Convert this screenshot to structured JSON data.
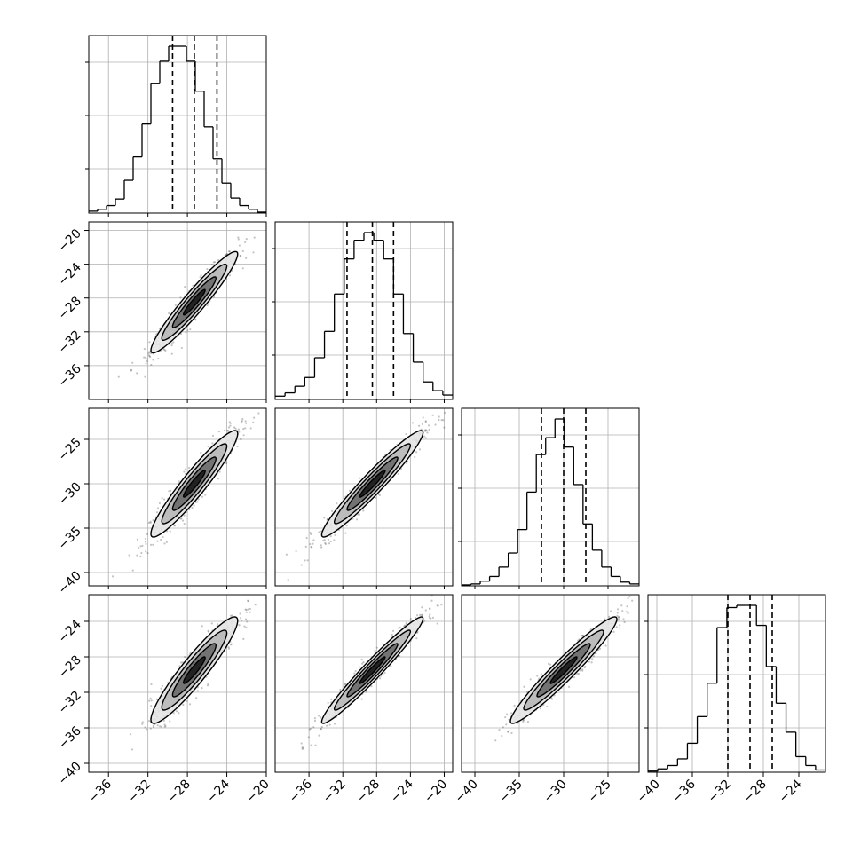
{
  "chart_data": {
    "type": "corner",
    "title": "",
    "parameters": [
      "",
      "",
      "",
      ""
    ],
    "axes": [
      {
        "range": [
          -38,
          -20
        ],
        "ticks": [
          -36,
          -32,
          -28,
          -24,
          -20
        ],
        "tick_labels": [
          "−36",
          "−32",
          "−28",
          "−24",
          "−20"
        ]
      },
      {
        "range": [
          -40,
          -19
        ],
        "ticks": [
          -36,
          -32,
          -28,
          -24,
          -20
        ],
        "tick_labels": [
          "−36",
          "−32",
          "−28",
          "−24",
          "−20"
        ]
      },
      {
        "range": [
          -41.5,
          -21.5
        ],
        "ticks": [
          -40,
          -35,
          -30,
          -25
        ],
        "tick_labels": [
          "−40",
          "−35",
          "−30",
          "−25"
        ]
      },
      {
        "range": [
          -41,
          -21
        ],
        "ticks": [
          -40,
          -36,
          -32,
          -28,
          -24
        ],
        "tick_labels": [
          "−40",
          "−36",
          "−32",
          "−28",
          "−24"
        ]
      }
    ],
    "y_ticks_diag": [
      0.25,
      0.55,
      0.85
    ],
    "histograms": [
      {
        "counts": [
          2,
          4,
          8,
          15,
          35,
          60,
          95,
          138,
          162,
          178,
          178,
          162,
          130,
          92,
          58,
          32,
          16,
          8,
          4,
          1
        ],
        "quantiles": [
          -29.5,
          -27.3,
          -25.0
        ]
      },
      {
        "counts": [
          3,
          6,
          12,
          20,
          38,
          62,
          96,
          128,
          145,
          152,
          145,
          128,
          96,
          60,
          34,
          16,
          8,
          4
        ],
        "quantiles": [
          -31.5,
          -28.5,
          -26.0
        ]
      },
      {
        "counts": [
          1,
          2,
          5,
          10,
          20,
          35,
          60,
          100,
          140,
          158,
          178,
          148,
          108,
          66,
          38,
          20,
          10,
          4,
          2
        ],
        "quantiles": [
          -32.5,
          -30.0,
          -27.5
        ]
      },
      {
        "counts": [
          1,
          3,
          6,
          12,
          26,
          50,
          80,
          130,
          148,
          150,
          150,
          132,
          95,
          62,
          36,
          14,
          6,
          2
        ],
        "quantiles": [
          -32.0,
          -29.5,
          -27.0
        ]
      }
    ],
    "pairs": [
      {
        "row": 1,
        "col": 0,
        "mean": [
          -27.3,
          -28.5
        ],
        "sd": [
          2.2,
          3.0
        ],
        "rho": 0.95
      },
      {
        "row": 2,
        "col": 0,
        "mean": [
          -27.3,
          -30.0
        ],
        "sd": [
          2.2,
          3.0
        ],
        "rho": 0.94
      },
      {
        "row": 2,
        "col": 1,
        "mean": [
          -28.5,
          -30.0
        ],
        "sd": [
          3.0,
          3.0
        ],
        "rho": 0.96
      },
      {
        "row": 3,
        "col": 0,
        "mean": [
          -27.3,
          -29.5
        ],
        "sd": [
          2.2,
          3.0
        ],
        "rho": 0.93
      },
      {
        "row": 3,
        "col": 1,
        "mean": [
          -28.5,
          -29.5
        ],
        "sd": [
          3.0,
          3.0
        ],
        "rho": 0.97
      },
      {
        "row": 3,
        "col": 2,
        "mean": [
          -30.0,
          -29.5
        ],
        "sd": [
          3.0,
          3.0
        ],
        "rho": 0.96
      }
    ],
    "contour_levels_sigma": [
      0.5,
      1.0,
      1.5,
      2.0
    ],
    "grid": true,
    "colors": {
      "line": "#000000",
      "grid": "#b0b0b0",
      "points": "#555555"
    }
  }
}
